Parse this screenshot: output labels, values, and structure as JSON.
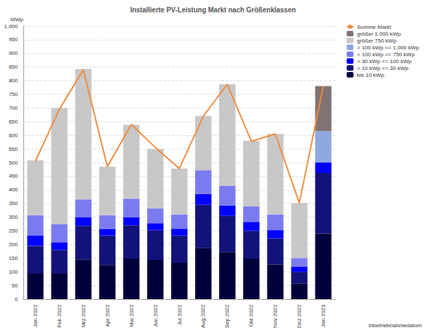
{
  "chart_data": {
    "type": "bar",
    "title": "Installierte PV-Leistung Markt nach Größenklassen",
    "ylabel": "MWp",
    "xlabel": "Inbetriebnahmedatum",
    "stacked": true,
    "grid": true,
    "legend": "right",
    "categories": [
      "Jan 2022",
      "Feb 2022",
      "Mrz 2022",
      "Apr 2022",
      "Mai 2022",
      "Jun 2022",
      "Jul 2022",
      "Aug 2022",
      "Sep 2022",
      "Okt 2022",
      "Nov 2022",
      "Dez 2022",
      "Jan 2023"
    ],
    "ylim": [
      0,
      1000
    ],
    "yticks": [
      0,
      50,
      100,
      150,
      200,
      250,
      300,
      350,
      400,
      450,
      500,
      550,
      600,
      650,
      700,
      750,
      800,
      850,
      900,
      950,
      {
        "value": 1000,
        "label": "1.000"
      }
    ],
    "series": [
      {
        "name": "Summe Markt",
        "type": "line",
        "color": "#f08a3c",
        "values": [
          505,
          695,
          840,
          485,
          640,
          555,
          478,
          670,
          787,
          578,
          605,
          352,
          780
        ]
      },
      {
        "name": "größer 1.000 kWp",
        "color": "#7f7373",
        "values": [
          null,
          null,
          null,
          null,
          null,
          null,
          null,
          null,
          null,
          null,
          null,
          null,
          165
        ]
      },
      {
        "name": "größer 750 kWp",
        "color": "#c8c8c8",
        "values": [
          201,
          425,
          478,
          178,
          270,
          218,
          168,
          198,
          372,
          240,
          295,
          202,
          null
        ]
      },
      {
        "name": "> 100 kWp <= 1.000 kWp",
        "color": "#8fa8e0",
        "values": [
          null,
          null,
          null,
          null,
          null,
          null,
          null,
          null,
          null,
          null,
          null,
          null,
          115
        ]
      },
      {
        "name": "> 100 kWp <= 750 kWp",
        "color": "#7b7bf0",
        "values": [
          74,
          67,
          65,
          50,
          68,
          54,
          52,
          87,
          72,
          57,
          57,
          32,
          null
        ]
      },
      {
        "name": "> 30 kWp <= 100 kWp",
        "color": "#0000ff",
        "values": [
          38,
          28,
          32,
          25,
          30,
          26,
          26,
          40,
          38,
          33,
          31,
          18,
          38
        ]
      },
      {
        "name": "> 10 kWp <= 30 kWp",
        "color": "#12127a",
        "values": [
          102,
          87,
          123,
          107,
          122,
          109,
          99,
          157,
          132,
          102,
          95,
          43,
          222
        ]
      },
      {
        "name": "bis 10 kWp",
        "color": "#00003c",
        "values": [
          93,
          93,
          145,
          125,
          148,
          143,
          133,
          188,
          173,
          148,
          127,
          57,
          240
        ]
      }
    ]
  }
}
